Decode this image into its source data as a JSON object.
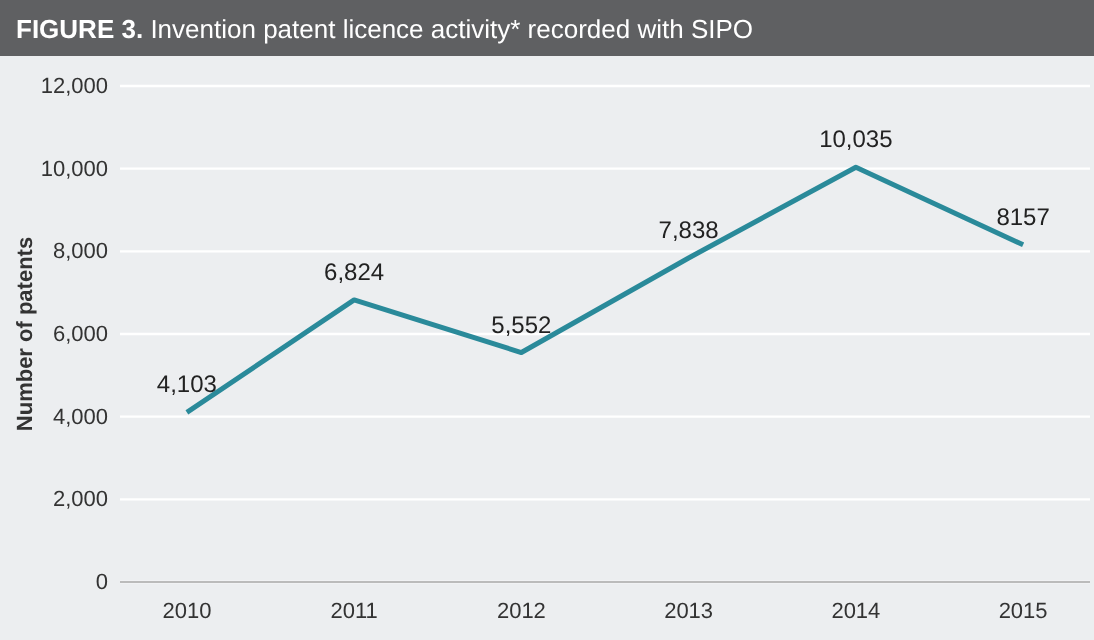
{
  "chart_data": {
    "type": "line",
    "title": "FIGURE 3. Invention patent licence activity* recorded with SIPO",
    "ylabel": "Number of patents",
    "categories": [
      "2010",
      "2011",
      "2012",
      "2013",
      "2014",
      "2015"
    ],
    "series": [
      {
        "color": "#2a8a9a",
        "values": [
          4103,
          6824,
          5552,
          7838,
          10035,
          8157
        ],
        "value_labels": [
          "4,103",
          "6,824",
          "5,552",
          "7,838",
          "10,035",
          "8157"
        ]
      }
    ],
    "ylim": [
      0,
      12000
    ],
    "yticks": [
      0,
      {
        "value": 2000,
        "label": "2,000"
      },
      {
        "value": 4000,
        "label": "4,000"
      },
      {
        "value": 6000,
        "label": "6,000"
      },
      {
        "value": 8000,
        "label": "8,000"
      },
      {
        "value": 10000,
        "label": "10,000"
      },
      {
        "value": 12000,
        "label": "12,000"
      }
    ],
    "grid": "y",
    "marker": "none",
    "line_style": "solid"
  }
}
